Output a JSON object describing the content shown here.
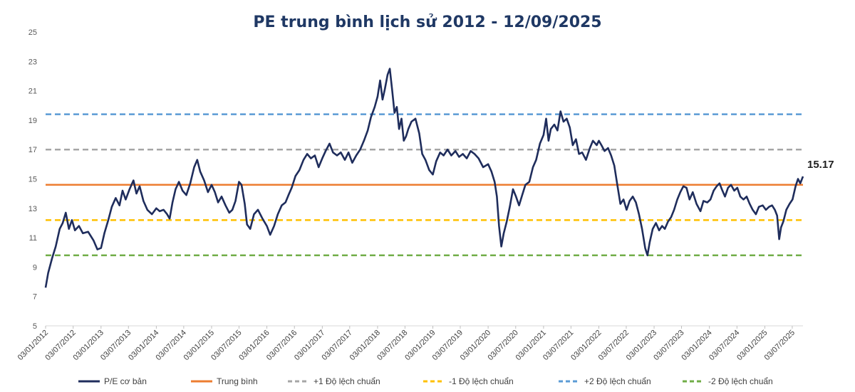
{
  "chart_data": {
    "type": "line",
    "title": "PE trung bình lịch sử 2012 - 12/09/2025",
    "ylim": [
      5,
      25
    ],
    "yticks": [
      5,
      7,
      9,
      11,
      13,
      15,
      17,
      19,
      21,
      23,
      25
    ],
    "xlim": [
      "2012-01-03",
      "2025-09-12"
    ],
    "xtick_labels": [
      "03/01/2012",
      "03/07/2012",
      "03/01/2013",
      "03/07/2013",
      "03/01/2014",
      "03/07/2014",
      "03/01/2015",
      "03/07/2015",
      "03/01/2016",
      "03/07/2016",
      "03/01/2017",
      "03/07/2017",
      "03/01/2018",
      "03/07/2018",
      "03/01/2019",
      "03/07/2019",
      "03/01/2020",
      "03/07/2020",
      "03/01/2021",
      "03/07/2021",
      "03/01/2022",
      "03/07/2022",
      "03/01/2023",
      "03/07/2023",
      "03/01/2024",
      "03/07/2024",
      "03/01/2025",
      "03/07/2025"
    ],
    "xtick_dates": [
      "2012-01-03",
      "2012-07-03",
      "2013-01-03",
      "2013-07-03",
      "2014-01-03",
      "2014-07-03",
      "2015-01-03",
      "2015-07-03",
      "2016-01-03",
      "2016-07-03",
      "2017-01-03",
      "2017-07-03",
      "2018-01-03",
      "2018-07-03",
      "2019-01-03",
      "2019-07-03",
      "2020-01-03",
      "2020-07-03",
      "2021-01-03",
      "2021-07-03",
      "2022-01-03",
      "2022-07-03",
      "2023-01-03",
      "2023-07-03",
      "2024-01-03",
      "2024-07-03",
      "2025-01-03",
      "2025-07-03"
    ],
    "grid": false,
    "legend_position": "bottom",
    "series": [
      {
        "name": "P/E cơ bản",
        "color": "#1f2d5c",
        "style": "solid",
        "points": [
          [
            "2012-01-03",
            7.6
          ],
          [
            "2012-01-20",
            8.6
          ],
          [
            "2012-02-15",
            9.6
          ],
          [
            "2012-03-10",
            10.4
          ],
          [
            "2012-04-05",
            11.6
          ],
          [
            "2012-04-25",
            12.0
          ],
          [
            "2012-05-15",
            12.7
          ],
          [
            "2012-06-05",
            11.6
          ],
          [
            "2012-06-25",
            12.2
          ],
          [
            "2012-07-15",
            11.5
          ],
          [
            "2012-08-10",
            11.8
          ],
          [
            "2012-09-05",
            11.3
          ],
          [
            "2012-10-10",
            11.4
          ],
          [
            "2012-11-15",
            10.8
          ],
          [
            "2012-12-10",
            10.2
          ],
          [
            "2013-01-03",
            10.3
          ],
          [
            "2013-01-25",
            11.3
          ],
          [
            "2013-02-20",
            12.2
          ],
          [
            "2013-03-15",
            13.1
          ],
          [
            "2013-04-10",
            13.7
          ],
          [
            "2013-05-05",
            13.2
          ],
          [
            "2013-05-25",
            14.2
          ],
          [
            "2013-06-15",
            13.6
          ],
          [
            "2013-07-10",
            14.3
          ],
          [
            "2013-08-05",
            14.9
          ],
          [
            "2013-08-25",
            14.0
          ],
          [
            "2013-09-15",
            14.5
          ],
          [
            "2013-10-10",
            13.5
          ],
          [
            "2013-11-05",
            12.9
          ],
          [
            "2013-12-05",
            12.6
          ],
          [
            "2014-01-03",
            13.0
          ],
          [
            "2014-01-25",
            12.8
          ],
          [
            "2014-02-20",
            12.9
          ],
          [
            "2014-03-15",
            12.6
          ],
          [
            "2014-04-01",
            12.3
          ],
          [
            "2014-04-20",
            13.4
          ],
          [
            "2014-05-10",
            14.3
          ],
          [
            "2014-06-01",
            14.8
          ],
          [
            "2014-06-25",
            14.2
          ],
          [
            "2014-07-20",
            13.9
          ],
          [
            "2014-08-15",
            14.7
          ],
          [
            "2014-09-10",
            15.8
          ],
          [
            "2014-09-30",
            16.3
          ],
          [
            "2014-10-20",
            15.5
          ],
          [
            "2014-11-15",
            14.9
          ],
          [
            "2014-12-10",
            14.1
          ],
          [
            "2015-01-03",
            14.6
          ],
          [
            "2015-01-25",
            14.1
          ],
          [
            "2015-02-15",
            13.4
          ],
          [
            "2015-03-10",
            13.8
          ],
          [
            "2015-04-05",
            13.2
          ],
          [
            "2015-04-30",
            12.7
          ],
          [
            "2015-05-20",
            12.9
          ],
          [
            "2015-06-10",
            13.5
          ],
          [
            "2015-07-03",
            14.8
          ],
          [
            "2015-07-20",
            14.6
          ],
          [
            "2015-08-10",
            13.3
          ],
          [
            "2015-08-25",
            11.9
          ],
          [
            "2015-09-15",
            11.6
          ],
          [
            "2015-10-10",
            12.6
          ],
          [
            "2015-11-05",
            12.9
          ],
          [
            "2015-12-05",
            12.3
          ],
          [
            "2016-01-03",
            11.8
          ],
          [
            "2016-01-25",
            11.2
          ],
          [
            "2016-02-20",
            11.8
          ],
          [
            "2016-03-15",
            12.6
          ],
          [
            "2016-04-10",
            13.2
          ],
          [
            "2016-05-05",
            13.4
          ],
          [
            "2016-05-25",
            13.9
          ],
          [
            "2016-06-15",
            14.4
          ],
          [
            "2016-07-10",
            15.2
          ],
          [
            "2016-08-05",
            15.6
          ],
          [
            "2016-09-01",
            16.3
          ],
          [
            "2016-09-25",
            16.7
          ],
          [
            "2016-10-20",
            16.4
          ],
          [
            "2016-11-15",
            16.6
          ],
          [
            "2016-12-10",
            15.8
          ],
          [
            "2017-01-03",
            16.4
          ],
          [
            "2017-01-25",
            16.9
          ],
          [
            "2017-02-20",
            17.4
          ],
          [
            "2017-03-15",
            16.8
          ],
          [
            "2017-04-10",
            16.6
          ],
          [
            "2017-05-05",
            16.8
          ],
          [
            "2017-06-01",
            16.3
          ],
          [
            "2017-06-25",
            16.8
          ],
          [
            "2017-07-20",
            16.1
          ],
          [
            "2017-08-15",
            16.6
          ],
          [
            "2017-09-10",
            17.0
          ],
          [
            "2017-10-05",
            17.6
          ],
          [
            "2017-10-30",
            18.3
          ],
          [
            "2017-11-20",
            19.2
          ],
          [
            "2017-12-15",
            19.9
          ],
          [
            "2018-01-03",
            20.6
          ],
          [
            "2018-01-20",
            21.7
          ],
          [
            "2018-02-05",
            20.4
          ],
          [
            "2018-02-20",
            21.1
          ],
          [
            "2018-03-10",
            22.1
          ],
          [
            "2018-03-25",
            22.5
          ],
          [
            "2018-04-10",
            21.0
          ],
          [
            "2018-04-25",
            19.5
          ],
          [
            "2018-05-10",
            19.9
          ],
          [
            "2018-05-25",
            18.4
          ],
          [
            "2018-06-10",
            19.1
          ],
          [
            "2018-06-25",
            17.6
          ],
          [
            "2018-07-10",
            17.9
          ],
          [
            "2018-07-25",
            18.4
          ],
          [
            "2018-08-15",
            18.9
          ],
          [
            "2018-09-10",
            19.1
          ],
          [
            "2018-10-05",
            18.1
          ],
          [
            "2018-10-25",
            16.7
          ],
          [
            "2018-11-15",
            16.3
          ],
          [
            "2018-12-10",
            15.6
          ],
          [
            "2019-01-03",
            15.3
          ],
          [
            "2019-01-25",
            16.2
          ],
          [
            "2019-02-20",
            16.8
          ],
          [
            "2019-03-15",
            16.6
          ],
          [
            "2019-04-10",
            17.0
          ],
          [
            "2019-05-05",
            16.6
          ],
          [
            "2019-06-01",
            16.9
          ],
          [
            "2019-06-25",
            16.5
          ],
          [
            "2019-07-20",
            16.7
          ],
          [
            "2019-08-15",
            16.4
          ],
          [
            "2019-09-10",
            16.9
          ],
          [
            "2019-10-05",
            16.7
          ],
          [
            "2019-11-01",
            16.4
          ],
          [
            "2019-12-01",
            15.8
          ],
          [
            "2020-01-03",
            16.0
          ],
          [
            "2020-01-25",
            15.5
          ],
          [
            "2020-02-15",
            14.8
          ],
          [
            "2020-03-01",
            13.8
          ],
          [
            "2020-03-15",
            11.8
          ],
          [
            "2020-03-30",
            10.4
          ],
          [
            "2020-04-15",
            11.3
          ],
          [
            "2020-05-05",
            12.1
          ],
          [
            "2020-05-25",
            13.1
          ],
          [
            "2020-06-15",
            14.3
          ],
          [
            "2020-07-05",
            13.8
          ],
          [
            "2020-07-25",
            13.2
          ],
          [
            "2020-08-15",
            13.9
          ],
          [
            "2020-09-05",
            14.6
          ],
          [
            "2020-10-01",
            14.8
          ],
          [
            "2020-10-25",
            15.8
          ],
          [
            "2020-11-15",
            16.3
          ],
          [
            "2020-12-10",
            17.4
          ],
          [
            "2021-01-03",
            18.0
          ],
          [
            "2021-01-20",
            19.1
          ],
          [
            "2021-02-05",
            17.6
          ],
          [
            "2021-02-20",
            18.4
          ],
          [
            "2021-03-15",
            18.7
          ],
          [
            "2021-04-05",
            18.3
          ],
          [
            "2021-04-25",
            19.6
          ],
          [
            "2021-05-15",
            18.9
          ],
          [
            "2021-06-05",
            19.1
          ],
          [
            "2021-06-25",
            18.5
          ],
          [
            "2021-07-15",
            17.3
          ],
          [
            "2021-08-05",
            17.7
          ],
          [
            "2021-08-25",
            16.7
          ],
          [
            "2021-09-15",
            16.8
          ],
          [
            "2021-10-10",
            16.3
          ],
          [
            "2021-11-05",
            17.1
          ],
          [
            "2021-11-25",
            17.6
          ],
          [
            "2021-12-20",
            17.3
          ],
          [
            "2022-01-03",
            17.6
          ],
          [
            "2022-01-20",
            17.3
          ],
          [
            "2022-02-10",
            16.9
          ],
          [
            "2022-03-05",
            17.1
          ],
          [
            "2022-03-25",
            16.6
          ],
          [
            "2022-04-15",
            15.9
          ],
          [
            "2022-05-05",
            14.6
          ],
          [
            "2022-05-25",
            13.3
          ],
          [
            "2022-06-15",
            13.6
          ],
          [
            "2022-07-05",
            12.9
          ],
          [
            "2022-07-25",
            13.5
          ],
          [
            "2022-08-15",
            13.8
          ],
          [
            "2022-09-05",
            13.4
          ],
          [
            "2022-09-25",
            12.6
          ],
          [
            "2022-10-15",
            11.6
          ],
          [
            "2022-11-05",
            10.3
          ],
          [
            "2022-11-20",
            9.8
          ],
          [
            "2022-12-05",
            10.7
          ],
          [
            "2022-12-25",
            11.6
          ],
          [
            "2023-01-15",
            12.0
          ],
          [
            "2023-02-05",
            11.5
          ],
          [
            "2023-02-25",
            11.8
          ],
          [
            "2023-03-15",
            11.6
          ],
          [
            "2023-04-05",
            12.1
          ],
          [
            "2023-04-25",
            12.4
          ],
          [
            "2023-05-15",
            12.9
          ],
          [
            "2023-06-05",
            13.6
          ],
          [
            "2023-06-25",
            14.1
          ],
          [
            "2023-07-15",
            14.5
          ],
          [
            "2023-08-05",
            14.4
          ],
          [
            "2023-08-25",
            13.6
          ],
          [
            "2023-09-15",
            14.1
          ],
          [
            "2023-10-10",
            13.3
          ],
          [
            "2023-11-05",
            12.8
          ],
          [
            "2023-11-25",
            13.5
          ],
          [
            "2023-12-20",
            13.4
          ],
          [
            "2024-01-10",
            13.6
          ],
          [
            "2024-01-31",
            14.2
          ],
          [
            "2024-02-20",
            14.5
          ],
          [
            "2024-03-10",
            14.7
          ],
          [
            "2024-03-25",
            14.3
          ],
          [
            "2024-04-15",
            13.8
          ],
          [
            "2024-05-05",
            14.4
          ],
          [
            "2024-05-25",
            14.6
          ],
          [
            "2024-06-15",
            14.2
          ],
          [
            "2024-07-05",
            14.4
          ],
          [
            "2024-07-25",
            13.8
          ],
          [
            "2024-08-15",
            13.6
          ],
          [
            "2024-09-05",
            13.8
          ],
          [
            "2024-09-25",
            13.3
          ],
          [
            "2024-10-15",
            12.9
          ],
          [
            "2024-11-05",
            12.6
          ],
          [
            "2024-11-25",
            13.1
          ],
          [
            "2024-12-20",
            13.2
          ],
          [
            "2025-01-10",
            12.9
          ],
          [
            "2025-01-31",
            13.1
          ],
          [
            "2025-02-20",
            13.2
          ],
          [
            "2025-03-10",
            12.9
          ],
          [
            "2025-03-25",
            12.5
          ],
          [
            "2025-04-08",
            10.9
          ],
          [
            "2025-04-20",
            11.7
          ],
          [
            "2025-05-05",
            12.1
          ],
          [
            "2025-05-25",
            12.9
          ],
          [
            "2025-06-15",
            13.3
          ],
          [
            "2025-07-05",
            13.6
          ],
          [
            "2025-07-25",
            14.5
          ],
          [
            "2025-08-10",
            15.0
          ],
          [
            "2025-08-25",
            14.7
          ],
          [
            "2025-09-12",
            15.17
          ]
        ]
      },
      {
        "name": "Trung bình",
        "value": 14.6,
        "color": "#ed7d31",
        "style": "solid"
      },
      {
        "name": "+1 Độ lệch chuẩn",
        "value": 17.0,
        "color": "#a6a6a6",
        "style": "dashed"
      },
      {
        "name": "-1 Độ lệch chuẩn",
        "value": 12.2,
        "color": "#ffc000",
        "style": "dashed"
      },
      {
        "name": "+2 Độ lệch chuẩn",
        "value": 19.4,
        "color": "#5b9bd5",
        "style": "dashed"
      },
      {
        "name": "-2 Độ lệch chuẩn",
        "value": 9.8,
        "color": "#70ad47",
        "style": "dashed"
      }
    ],
    "last_value_label": "15.17"
  }
}
